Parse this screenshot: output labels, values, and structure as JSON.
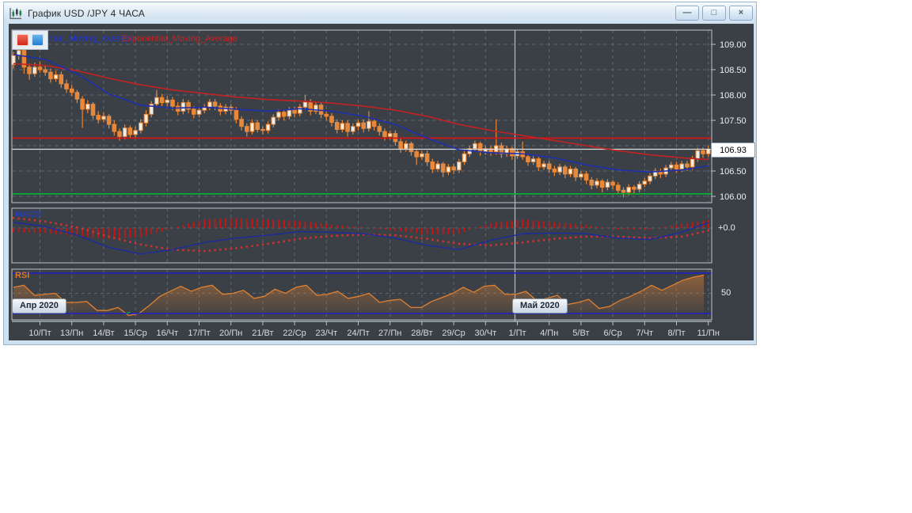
{
  "window": {
    "title": "График USD /JPY  4 ЧАСА",
    "icons": {
      "minimize": "—",
      "restore": "□",
      "close": "×"
    }
  },
  "legend": {
    "ema_fast_label": "Exponential_Moving_Average",
    "ema_slow_label": "Exponential_Moving_Average"
  },
  "panel_labels": {
    "macd": "MACD",
    "rsi": "RSI"
  },
  "axis_labels": {
    "macd_zero": "+0.0",
    "rsi_mid": "50"
  },
  "months": {
    "april": "Апр 2020",
    "may": "Май 2020"
  },
  "price_box": {
    "value": "106.93"
  },
  "colors": {
    "client_bg": "#3b4046",
    "grid": "#5f666d",
    "panel_border": "#b9c2cb",
    "month_line": "#b5bcc4",
    "candle": "#e8883a",
    "candle_bull_fill": "#f2ece0",
    "ema_fast_blue": "#1f2fae",
    "ema_slow_red": "#c42222",
    "level_red": "#e01010",
    "level_green": "#00b830",
    "current_line": "#dcdcdc",
    "macd_line": "#1a2aa0",
    "macd_signal": "#d23030",
    "histogram": "#cc1414",
    "rsi_line": "#e08030",
    "rsi_bounds": "#1f1fc8",
    "axis_text": "#d8dce0",
    "legend_blue": "#2233cc",
    "legend_red": "#cc2020"
  },
  "chart_data": {
    "type": "candlestick",
    "title": "График USD /JPY 4 ЧАСА",
    "dates": [
      "10/Пт",
      "13/Пн",
      "14/Вт",
      "15/Ср",
      "16/Чт",
      "17/Пт",
      "20/Пн",
      "21/Вт",
      "22/Ср",
      "23/Чт",
      "24/Пт",
      "27/Пн",
      "28/Вт",
      "29/Ср",
      "30/Чт",
      "1/Пт",
      "4/Пн",
      "5/Вт",
      "6/Ср",
      "7/Чт",
      "8/Пт",
      "11/Пн"
    ],
    "month_separator_date_index": 15,
    "price_axis_ticks": [
      109.0,
      108.5,
      108.0,
      107.5,
      107.0,
      106.5,
      106.0
    ],
    "price_range_visible": [
      105.88,
      109.28
    ],
    "current_price": 106.93,
    "levels": {
      "resistance_red": 107.15,
      "support_green": 106.05
    },
    "candles_per_day": 6,
    "candles": [
      [
        108.6,
        108.85,
        108.52,
        108.78
      ],
      [
        108.78,
        109.0,
        108.7,
        108.88
      ],
      [
        108.88,
        108.94,
        108.42,
        108.55
      ],
      [
        108.55,
        108.62,
        108.3,
        108.42
      ],
      [
        108.42,
        108.64,
        108.36,
        108.55
      ],
      [
        108.55,
        108.66,
        108.44,
        108.5
      ],
      [
        108.5,
        108.58,
        108.38,
        108.45
      ],
      [
        108.45,
        108.52,
        108.24,
        108.32
      ],
      [
        108.32,
        108.48,
        108.26,
        108.4
      ],
      [
        108.4,
        108.46,
        108.14,
        108.22
      ],
      [
        108.22,
        108.3,
        108.04,
        108.12
      ],
      [
        108.12,
        108.2,
        107.98,
        108.05
      ],
      [
        108.05,
        108.1,
        107.84,
        107.92
      ],
      [
        107.92,
        107.98,
        107.35,
        107.72
      ],
      [
        107.72,
        107.9,
        107.64,
        107.82
      ],
      [
        107.82,
        107.86,
        107.52,
        107.6
      ],
      [
        107.6,
        107.68,
        107.44,
        107.52
      ],
      [
        107.52,
        107.66,
        107.46,
        107.58
      ],
      [
        107.58,
        107.62,
        107.34,
        107.42
      ],
      [
        107.42,
        107.5,
        107.2,
        107.28
      ],
      [
        107.28,
        107.34,
        107.1,
        107.18
      ],
      [
        107.18,
        107.42,
        107.12,
        107.35
      ],
      [
        107.35,
        107.4,
        107.14,
        107.22
      ],
      [
        107.22,
        107.38,
        107.16,
        107.3
      ],
      [
        107.3,
        107.52,
        107.24,
        107.45
      ],
      [
        107.45,
        107.7,
        107.38,
        107.62
      ],
      [
        107.62,
        107.88,
        107.56,
        107.82
      ],
      [
        107.82,
        108.1,
        107.76,
        107.95
      ],
      [
        107.95,
        108.02,
        107.78,
        107.85
      ],
      [
        107.85,
        107.98,
        107.78,
        107.9
      ],
      [
        107.9,
        107.96,
        107.7,
        107.78
      ],
      [
        107.78,
        107.86,
        107.6,
        107.68
      ],
      [
        107.68,
        107.92,
        107.62,
        107.85
      ],
      [
        107.85,
        107.9,
        107.64,
        107.72
      ],
      [
        107.72,
        107.78,
        107.54,
        107.62
      ],
      [
        107.62,
        107.76,
        107.56,
        107.7
      ],
      [
        107.7,
        107.82,
        107.64,
        107.76
      ],
      [
        107.76,
        107.92,
        107.7,
        107.86
      ],
      [
        107.86,
        107.92,
        107.7,
        107.78
      ],
      [
        107.78,
        107.84,
        107.6,
        107.68
      ],
      [
        107.68,
        107.82,
        107.62,
        107.76
      ],
      [
        107.76,
        107.82,
        107.62,
        107.7
      ],
      [
        107.7,
        107.76,
        107.44,
        107.52
      ],
      [
        107.52,
        107.58,
        107.3,
        107.38
      ],
      [
        107.38,
        107.44,
        107.18,
        107.28
      ],
      [
        107.28,
        107.52,
        107.22,
        107.45
      ],
      [
        107.45,
        107.5,
        107.26,
        107.32
      ],
      [
        107.32,
        107.38,
        107.22,
        107.3
      ],
      [
        107.3,
        107.48,
        107.24,
        107.42
      ],
      [
        107.42,
        107.62,
        107.36,
        107.56
      ],
      [
        107.56,
        107.72,
        107.5,
        107.66
      ],
      [
        107.66,
        107.72,
        107.5,
        107.58
      ],
      [
        107.58,
        107.76,
        107.52,
        107.7
      ],
      [
        107.7,
        107.76,
        107.56,
        107.64
      ],
      [
        107.64,
        107.82,
        107.58,
        107.76
      ],
      [
        107.76,
        108.0,
        107.7,
        107.86
      ],
      [
        107.86,
        107.92,
        107.6,
        107.68
      ],
      [
        107.68,
        107.86,
        107.62,
        107.8
      ],
      [
        107.8,
        107.86,
        107.54,
        107.62
      ],
      [
        107.62,
        107.7,
        107.5,
        107.58
      ],
      [
        107.58,
        107.64,
        107.38,
        107.46
      ],
      [
        107.46,
        107.52,
        107.24,
        107.32
      ],
      [
        107.32,
        107.5,
        107.26,
        107.44
      ],
      [
        107.44,
        107.5,
        107.18,
        107.28
      ],
      [
        107.28,
        107.44,
        107.22,
        107.38
      ],
      [
        107.38,
        107.51,
        107.3,
        107.45
      ],
      [
        107.45,
        107.52,
        107.26,
        107.34
      ],
      [
        107.34,
        107.68,
        107.28,
        107.48
      ],
      [
        107.48,
        107.54,
        107.3,
        107.38
      ],
      [
        107.38,
        107.44,
        107.2,
        107.28
      ],
      [
        107.28,
        107.34,
        107.1,
        107.18
      ],
      [
        107.18,
        107.3,
        107.12,
        107.24
      ],
      [
        107.24,
        107.3,
        107.0,
        107.08
      ],
      [
        107.08,
        107.14,
        106.86,
        106.94
      ],
      [
        106.94,
        107.1,
        106.88,
        107.04
      ],
      [
        107.04,
        107.08,
        106.8,
        106.88
      ],
      [
        106.88,
        106.94,
        106.62,
        106.78
      ],
      [
        106.78,
        106.9,
        106.72,
        106.84
      ],
      [
        106.84,
        106.9,
        106.6,
        106.68
      ],
      [
        106.68,
        106.74,
        106.46,
        106.54
      ],
      [
        106.54,
        106.7,
        106.48,
        106.64
      ],
      [
        106.64,
        106.68,
        106.38,
        106.48
      ],
      [
        106.48,
        106.64,
        106.42,
        106.58
      ],
      [
        106.58,
        106.64,
        106.44,
        106.52
      ],
      [
        106.52,
        106.74,
        106.46,
        106.68
      ],
      [
        106.68,
        106.9,
        106.62,
        106.84
      ],
      [
        106.84,
        107.0,
        106.78,
        106.94
      ],
      [
        106.94,
        107.1,
        106.88,
        107.04
      ],
      [
        107.04,
        107.08,
        106.8,
        106.88
      ],
      [
        106.88,
        107.0,
        106.82,
        106.94
      ],
      [
        106.94,
        107.0,
        106.8,
        106.88
      ],
      [
        106.88,
        107.52,
        106.82,
        107.0
      ],
      [
        107.0,
        107.06,
        106.76,
        106.84
      ],
      [
        106.84,
        107.0,
        106.78,
        106.94
      ],
      [
        106.94,
        106.98,
        106.72,
        106.8
      ],
      [
        106.8,
        106.94,
        106.74,
        106.88
      ],
      [
        106.88,
        107.08,
        106.72,
        106.78
      ],
      [
        106.78,
        106.84,
        106.6,
        106.68
      ],
      [
        106.68,
        106.8,
        106.62,
        106.74
      ],
      [
        106.74,
        106.78,
        106.5,
        106.58
      ],
      [
        106.58,
        106.7,
        106.52,
        106.64
      ],
      [
        106.64,
        106.7,
        106.46,
        106.54
      ],
      [
        106.54,
        106.6,
        106.4,
        106.48
      ],
      [
        106.48,
        106.64,
        106.42,
        106.58
      ],
      [
        106.58,
        106.62,
        106.36,
        106.44
      ],
      [
        106.44,
        106.6,
        106.38,
        106.54
      ],
      [
        106.54,
        106.58,
        106.3,
        106.38
      ],
      [
        106.38,
        106.5,
        106.32,
        106.44
      ],
      [
        106.44,
        106.5,
        106.24,
        106.32
      ],
      [
        106.32,
        106.38,
        106.14,
        106.22
      ],
      [
        106.22,
        106.36,
        106.16,
        106.3
      ],
      [
        106.3,
        106.34,
        106.08,
        106.18
      ],
      [
        106.18,
        106.34,
        106.12,
        106.28
      ],
      [
        106.28,
        106.32,
        106.14,
        106.22
      ],
      [
        106.22,
        106.28,
        106.04,
        106.12
      ],
      [
        106.12,
        106.18,
        105.98,
        106.08
      ],
      [
        106.08,
        106.24,
        106.02,
        106.18
      ],
      [
        106.18,
        106.22,
        106.06,
        106.14
      ],
      [
        106.14,
        106.3,
        106.08,
        106.24
      ],
      [
        106.24,
        106.36,
        106.18,
        106.3
      ],
      [
        106.3,
        106.46,
        106.24,
        106.4
      ],
      [
        106.4,
        106.56,
        106.34,
        106.5
      ],
      [
        106.5,
        106.55,
        106.36,
        106.44
      ],
      [
        106.44,
        106.62,
        106.38,
        106.56
      ],
      [
        106.56,
        106.68,
        106.5,
        106.62
      ],
      [
        106.62,
        106.68,
        106.46,
        106.54
      ],
      [
        106.54,
        106.7,
        106.48,
        106.64
      ],
      [
        106.64,
        106.7,
        106.5,
        106.58
      ],
      [
        106.58,
        106.8,
        106.52,
        106.74
      ],
      [
        106.74,
        106.96,
        106.68,
        106.9
      ],
      [
        106.9,
        106.96,
        106.76,
        106.84
      ],
      [
        106.84,
        107.0,
        106.78,
        106.93
      ]
    ],
    "ema_fast_blue_daily": [
      108.8,
      108.7,
      108.42,
      108.02,
      107.8,
      107.74,
      107.76,
      107.72,
      107.68,
      107.73,
      107.68,
      107.58,
      107.42,
      107.15,
      106.92,
      106.86,
      106.84,
      106.76,
      106.62,
      106.52,
      106.48,
      106.52,
      106.62
    ],
    "ema_slow_red_daily": [
      108.62,
      108.58,
      108.48,
      108.33,
      108.2,
      108.1,
      108.03,
      107.96,
      107.91,
      107.88,
      107.84,
      107.78,
      107.7,
      107.58,
      107.42,
      107.3,
      107.2,
      107.1,
      107.0,
      106.9,
      106.82,
      106.76,
      106.72
    ],
    "macd": {
      "line_daily": [
        0.08,
        0.02,
        -0.1,
        -0.27,
        -0.36,
        -0.3,
        -0.2,
        -0.14,
        -0.1,
        -0.05,
        -0.06,
        -0.08,
        -0.14,
        -0.24,
        -0.3,
        -0.17,
        -0.08,
        -0.07,
        -0.08,
        -0.14,
        -0.16,
        -0.06,
        0.1
      ],
      "signal_daily": [
        0.14,
        0.09,
        0.01,
        -0.12,
        -0.23,
        -0.3,
        -0.32,
        -0.28,
        -0.22,
        -0.15,
        -0.11,
        -0.09,
        -0.1,
        -0.15,
        -0.22,
        -0.24,
        -0.2,
        -0.15,
        -0.12,
        -0.12,
        -0.14,
        -0.12,
        -0.02
      ],
      "zero": 0
    },
    "rsi": {
      "upper_bound": 70,
      "lower_bound": 30,
      "mid": 50,
      "values": [
        56,
        58,
        48,
        49,
        50,
        41,
        41,
        42,
        33,
        33,
        36,
        28,
        30,
        38,
        47,
        52,
        57,
        52,
        56,
        58,
        49,
        50,
        53,
        45,
        47,
        54,
        50,
        56,
        58,
        48,
        49,
        52,
        45,
        47,
        50,
        41,
        43,
        44,
        36,
        36,
        42,
        46,
        50,
        56,
        51,
        57,
        58,
        49,
        49,
        52,
        43,
        45,
        48,
        39,
        41,
        44,
        35,
        37,
        43,
        47,
        52,
        58,
        53,
        58,
        63,
        66,
        68
      ]
    }
  }
}
